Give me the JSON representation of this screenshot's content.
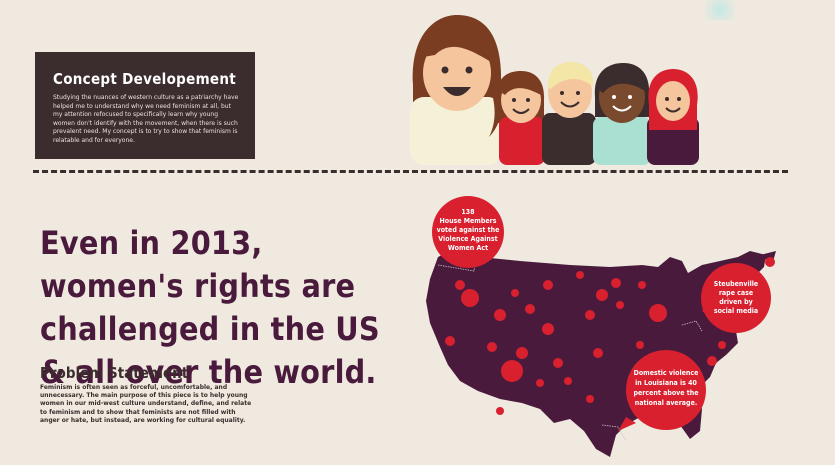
{
  "concept": {
    "title": "Concept Developement",
    "text": "Studying the nuances of western culture as a patriarchy have helped me to understand why we need feminism at all, but my attention refocused to specifically learn why young women don't identify with the movement, when there is such prevalent need. My concept is to try to show that feminism is relatable and for everyone."
  },
  "headline": {
    "text": "Even in 2013, women's rights are challenged in the US & all over the world."
  },
  "problem": {
    "title": "Problem Statement",
    "text": "Feminism is often seen as forceful, uncomfortable, and unnecessary. The main purpose of this piece is to help young women in our mid-west culture understand, define, and relate to feminism and to show that feminists are not filled with anger or hate, but instead, are working for cultural equality."
  },
  "map_callouts": {
    "house": [
      "138",
      "House Members",
      "voted against the",
      "Violence Against",
      "Women Act"
    ],
    "steubenville": [
      "Steubenville",
      "rape case",
      "driven by",
      "social media"
    ],
    "louisiana": [
      "Domestic violence",
      "in Louisiana is 40",
      "percent above the",
      "national average."
    ]
  },
  "colors": {
    "background": "#efe9df",
    "dark_box": "#3b2c2d",
    "map": "#4a1a3c",
    "accent_red": "#d8202f"
  }
}
